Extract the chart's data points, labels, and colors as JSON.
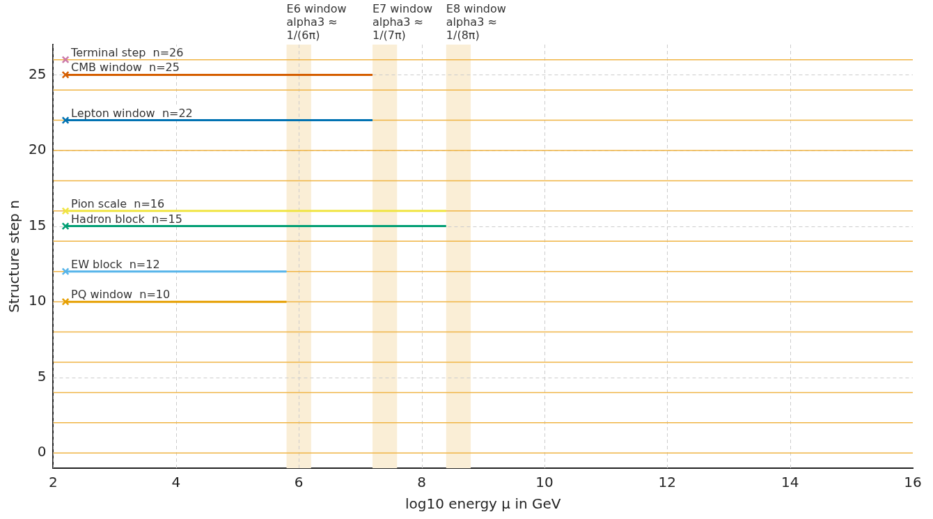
{
  "chart_data": {
    "type": "line",
    "xlabel": "log10 energy μ in GeV",
    "ylabel": "Structure step n",
    "xlim": [
      2,
      16
    ],
    "xticks": [
      2,
      4,
      6,
      8,
      10,
      12,
      14,
      16
    ],
    "ylim": [
      -1,
      27
    ],
    "yticks": [
      0,
      5,
      10,
      15,
      20,
      25
    ],
    "grid": true,
    "legend": false,
    "marker": "cross",
    "line_style": "solid",
    "series": [
      {
        "name": "Terminal step",
        "color": "#cc79a7",
        "x": [
          2.2
        ],
        "values": [
          26
        ],
        "value_labels": [
          "n=26"
        ]
      },
      {
        "name": "CMB window",
        "color": "#d55e00",
        "x": [
          2.2,
          7.2
        ],
        "values": [
          25,
          25
        ],
        "value_labels": [
          "n=25",
          null
        ]
      },
      {
        "name": "Lepton window",
        "color": "#0072b2",
        "x": [
          2.2,
          7.2
        ],
        "values": [
          22,
          22
        ],
        "value_labels": [
          "n=22",
          null
        ]
      },
      {
        "name": "Pion scale",
        "color": "#f0e442",
        "x": [
          2.2,
          8.4
        ],
        "values": [
          16,
          16
        ],
        "value_labels": [
          "n=16",
          null
        ]
      },
      {
        "name": "Hadron block",
        "color": "#009e73",
        "x": [
          2.2,
          8.4
        ],
        "values": [
          15,
          15
        ],
        "value_labels": [
          "n=15",
          null
        ]
      },
      {
        "name": "EW block",
        "color": "#56b4e9",
        "x": [
          2.2,
          5.8
        ],
        "values": [
          12,
          12
        ],
        "value_labels": [
          "n=12",
          null
        ]
      },
      {
        "name": "PQ window",
        "color": "#e69f00",
        "x": [
          2.2,
          5.8
        ],
        "values": [
          10,
          10
        ],
        "value_labels": [
          "n=10",
          null
        ]
      }
    ],
    "bands": [
      {
        "axis": "x",
        "from": 5.8,
        "to": 6.2,
        "label": "E6 window\nalpha3 ≈ 1/(6π)",
        "color": "#faeed6"
      },
      {
        "axis": "x",
        "from": 7.2,
        "to": 7.6,
        "label": "E7 window\nalpha3 ≈ 1/(7π)",
        "color": "#faeed6"
      },
      {
        "axis": "x",
        "from": 8.4,
        "to": 8.8,
        "label": "E8 window\nalpha3 ≈ 1/(8π)",
        "color": "#faeed6"
      }
    ],
    "ref_lines": [
      {
        "axis": "y",
        "value": 0,
        "color": "#f0b444"
      },
      {
        "axis": "y",
        "value": 2,
        "color": "#f0b444"
      },
      {
        "axis": "y",
        "value": 4,
        "color": "#f0b444"
      },
      {
        "axis": "y",
        "value": 6,
        "color": "#f0b444"
      },
      {
        "axis": "y",
        "value": 8,
        "color": "#f0b444"
      },
      {
        "axis": "y",
        "value": 10,
        "color": "#f0b444"
      },
      {
        "axis": "y",
        "value": 12,
        "color": "#f0b444"
      },
      {
        "axis": "y",
        "value": 14,
        "color": "#f0b444"
      },
      {
        "axis": "y",
        "value": 16,
        "color": "#f0b444"
      },
      {
        "axis": "y",
        "value": 18,
        "color": "#f0b444"
      },
      {
        "axis": "y",
        "value": 20,
        "color": "#f0b444"
      },
      {
        "axis": "y",
        "value": 22,
        "color": "#f0b444"
      },
      {
        "axis": "y",
        "value": 24,
        "color": "#f0b444"
      },
      {
        "axis": "y",
        "value": 26,
        "color": "#f0b444"
      }
    ]
  }
}
